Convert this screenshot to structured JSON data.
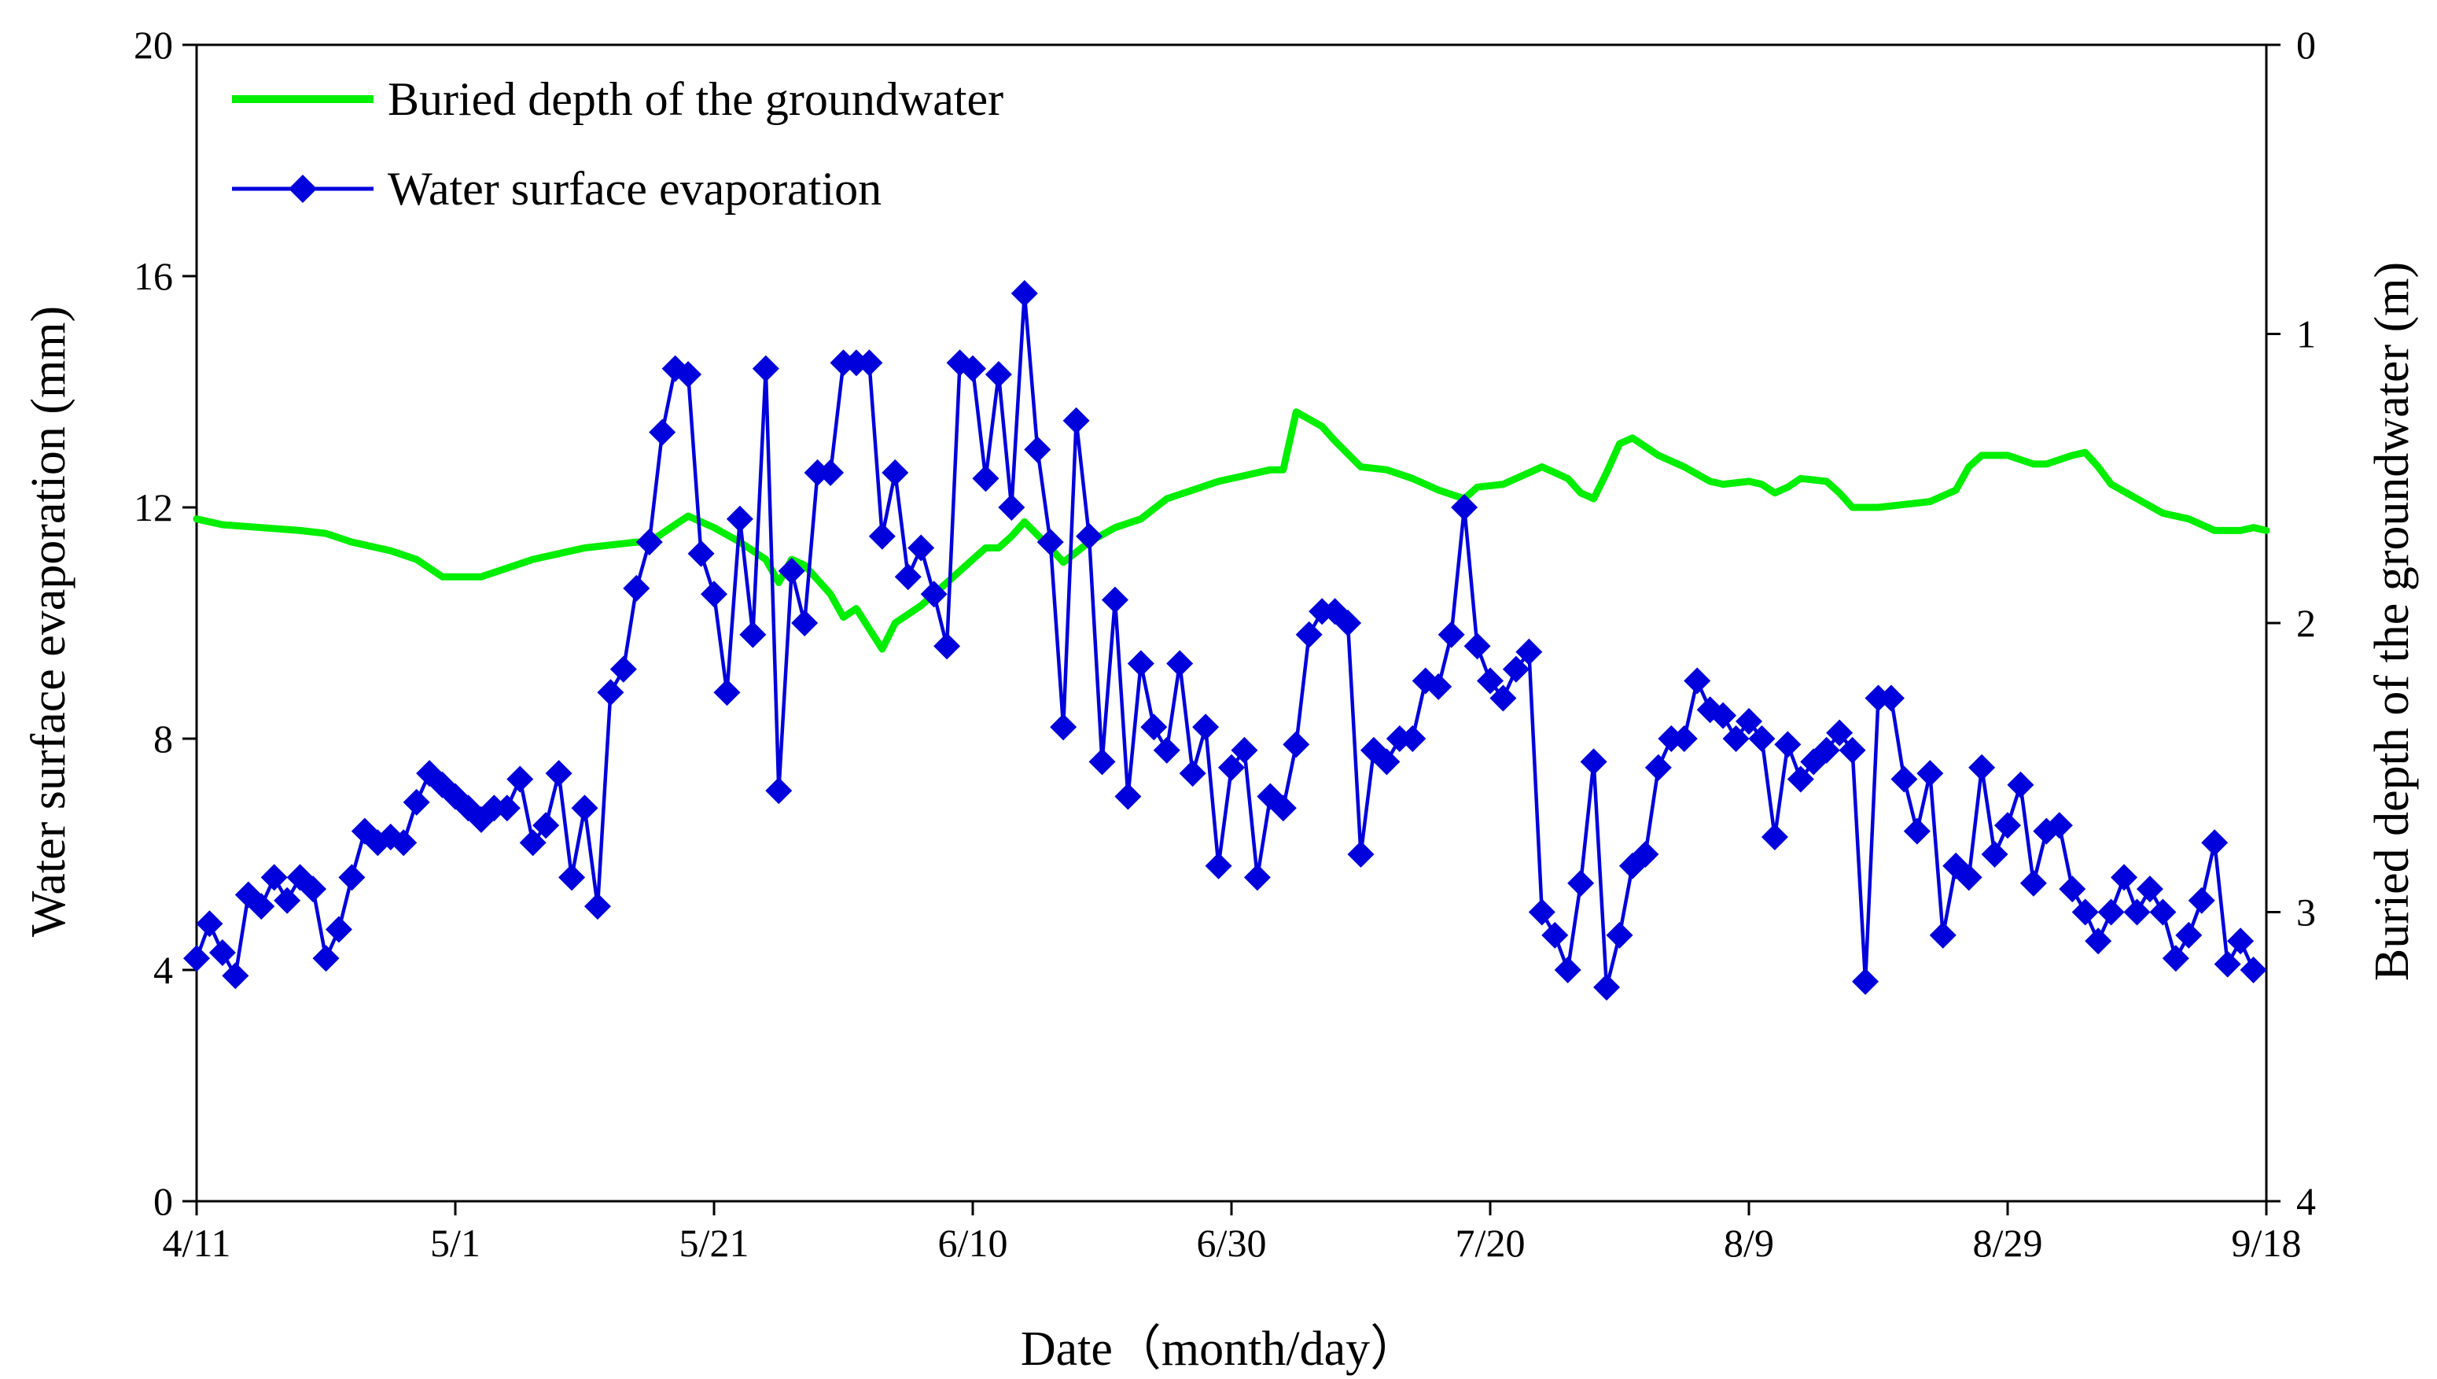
{
  "chart_data": {
    "type": "line",
    "dual_axis": true,
    "xlabel": "Date（month/day）",
    "ylabel_left": "Water surface evaporation (mm)",
    "ylabel_right": "Buried depth of the groundwater (m)",
    "x_range_day": [
      0,
      160
    ],
    "x_ticks": [
      {
        "day": 0,
        "label": "4/11"
      },
      {
        "day": 20,
        "label": "5/1"
      },
      {
        "day": 40,
        "label": "5/21"
      },
      {
        "day": 60,
        "label": "6/10"
      },
      {
        "day": 80,
        "label": "6/30"
      },
      {
        "day": 100,
        "label": "7/20"
      },
      {
        "day": 120,
        "label": "8/9"
      },
      {
        "day": 140,
        "label": "8/29"
      },
      {
        "day": 160,
        "label": "9/18"
      }
    ],
    "left_axis": {
      "ylim": [
        0,
        20
      ],
      "ticks": [
        "0",
        "4",
        "8",
        "12",
        "16",
        "20"
      ]
    },
    "right_axis": {
      "ylim": [
        0,
        4
      ],
      "inverted": true,
      "ticks": [
        "0",
        "1",
        "2",
        "3",
        "4"
      ]
    },
    "legend": {
      "position": "top-left",
      "items": [
        {
          "label": "Buried depth of the groundwater",
          "color": "#00ee00",
          "marker": "none"
        },
        {
          "label": "Water surface evaporation",
          "color": "#0000dd",
          "marker": "diamond"
        }
      ]
    },
    "series": [
      {
        "name": "Water surface evaporation",
        "axis": "left",
        "color": "#0000dd",
        "marker": "diamond",
        "days_start": 0,
        "values": [
          4.2,
          4.8,
          4.3,
          3.9,
          5.3,
          5.1,
          5.6,
          5.2,
          5.6,
          5.4,
          4.2,
          4.7,
          5.6,
          6.4,
          6.2,
          6.3,
          6.2,
          6.9,
          7.4,
          7.2,
          7.0,
          6.8,
          6.6,
          6.8,
          6.8,
          7.3,
          6.2,
          6.5,
          7.4,
          5.6,
          6.8,
          5.1,
          8.8,
          9.2,
          10.6,
          11.4,
          13.3,
          14.4,
          14.3,
          11.2,
          10.5,
          8.8,
          11.8,
          9.8,
          14.4,
          7.1,
          10.9,
          10.0,
          12.6,
          12.6,
          14.5,
          14.5,
          14.5,
          11.5,
          12.6,
          10.8,
          11.3,
          10.5,
          9.6,
          14.5,
          14.4,
          12.5,
          14.3,
          12.0,
          15.7,
          13.0,
          11.4,
          8.2,
          13.5,
          11.5,
          7.6,
          10.4,
          7.0,
          9.3,
          8.2,
          7.8,
          9.3,
          7.4,
          8.2,
          5.8,
          7.5,
          7.8,
          5.6,
          7.0,
          6.8,
          7.9,
          9.8,
          10.2,
          10.2,
          10.0,
          6.0,
          7.8,
          7.6,
          8.0,
          8.0,
          9.0,
          8.9,
          9.8,
          12.0,
          9.6,
          9.0,
          8.7,
          9.2,
          9.5,
          5.0,
          4.6,
          4.0,
          5.5,
          7.6,
          3.7,
          4.6,
          5.8,
          6.0,
          7.5,
          8.0,
          8.0,
          9.0,
          8.5,
          8.4,
          8.0,
          8.3,
          8.0,
          6.3,
          7.9,
          7.3,
          7.6,
          7.8,
          8.1,
          7.8,
          3.8,
          8.7,
          8.7,
          7.3,
          6.4,
          7.4,
          4.6,
          5.8,
          5.6,
          7.5,
          6.0,
          6.5,
          7.2,
          5.5,
          6.4,
          6.5,
          5.4,
          5.0,
          4.5,
          5.0,
          5.6,
          5.0,
          5.4,
          5.0,
          4.2,
          4.6,
          5.2,
          6.2,
          4.1,
          4.5,
          4.0
        ]
      },
      {
        "name": "Buried depth of the groundwater",
        "axis": "right",
        "color": "#00ee00",
        "marker": "none",
        "points": [
          [
            0,
            1.64
          ],
          [
            2,
            1.66
          ],
          [
            5,
            1.67
          ],
          [
            8,
            1.68
          ],
          [
            10,
            1.69
          ],
          [
            12,
            1.72
          ],
          [
            15,
            1.75
          ],
          [
            17,
            1.78
          ],
          [
            19,
            1.84
          ],
          [
            20,
            1.84
          ],
          [
            22,
            1.84
          ],
          [
            24,
            1.81
          ],
          [
            26,
            1.78
          ],
          [
            28,
            1.76
          ],
          [
            30,
            1.74
          ],
          [
            32,
            1.73
          ],
          [
            34,
            1.72
          ],
          [
            35,
            1.72
          ],
          [
            37,
            1.66
          ],
          [
            38,
            1.63
          ],
          [
            40,
            1.67
          ],
          [
            42,
            1.72
          ],
          [
            44,
            1.78
          ],
          [
            45,
            1.86
          ],
          [
            46,
            1.78
          ],
          [
            47,
            1.8
          ],
          [
            49,
            1.9
          ],
          [
            50,
            1.98
          ],
          [
            51,
            1.95
          ],
          [
            53,
            2.09
          ],
          [
            54,
            2.0
          ],
          [
            56,
            1.94
          ],
          [
            58,
            1.86
          ],
          [
            60,
            1.78
          ],
          [
            61,
            1.74
          ],
          [
            62,
            1.74
          ],
          [
            63,
            1.7
          ],
          [
            64,
            1.65
          ],
          [
            66,
            1.74
          ],
          [
            67,
            1.79
          ],
          [
            69,
            1.72
          ],
          [
            71,
            1.67
          ],
          [
            73,
            1.64
          ],
          [
            75,
            1.57
          ],
          [
            77,
            1.54
          ],
          [
            79,
            1.51
          ],
          [
            81,
            1.49
          ],
          [
            83,
            1.47
          ],
          [
            84,
            1.47
          ],
          [
            85,
            1.27
          ],
          [
            87,
            1.32
          ],
          [
            88,
            1.37
          ],
          [
            90,
            1.46
          ],
          [
            92,
            1.47
          ],
          [
            94,
            1.5
          ],
          [
            96,
            1.54
          ],
          [
            98,
            1.57
          ],
          [
            99,
            1.53
          ],
          [
            101,
            1.52
          ],
          [
            103,
            1.48
          ],
          [
            104,
            1.46
          ],
          [
            105,
            1.48
          ],
          [
            106,
            1.5
          ],
          [
            107,
            1.55
          ],
          [
            108,
            1.57
          ],
          [
            109,
            1.48
          ],
          [
            110,
            1.38
          ],
          [
            111,
            1.36
          ],
          [
            113,
            1.42
          ],
          [
            115,
            1.46
          ],
          [
            117,
            1.51
          ],
          [
            118,
            1.52
          ],
          [
            120,
            1.51
          ],
          [
            121,
            1.52
          ],
          [
            122,
            1.55
          ],
          [
            123,
            1.53
          ],
          [
            124,
            1.5
          ],
          [
            126,
            1.51
          ],
          [
            127,
            1.55
          ],
          [
            128,
            1.6
          ],
          [
            130,
            1.6
          ],
          [
            132,
            1.59
          ],
          [
            134,
            1.58
          ],
          [
            136,
            1.54
          ],
          [
            137,
            1.46
          ],
          [
            138,
            1.42
          ],
          [
            140,
            1.42
          ],
          [
            142,
            1.45
          ],
          [
            143,
            1.45
          ],
          [
            145,
            1.42
          ],
          [
            146,
            1.41
          ],
          [
            147,
            1.46
          ],
          [
            148,
            1.52
          ],
          [
            150,
            1.57
          ],
          [
            152,
            1.62
          ],
          [
            154,
            1.64
          ],
          [
            156,
            1.68
          ],
          [
            158,
            1.68
          ],
          [
            159,
            1.67
          ],
          [
            160,
            1.68
          ]
        ]
      }
    ]
  }
}
